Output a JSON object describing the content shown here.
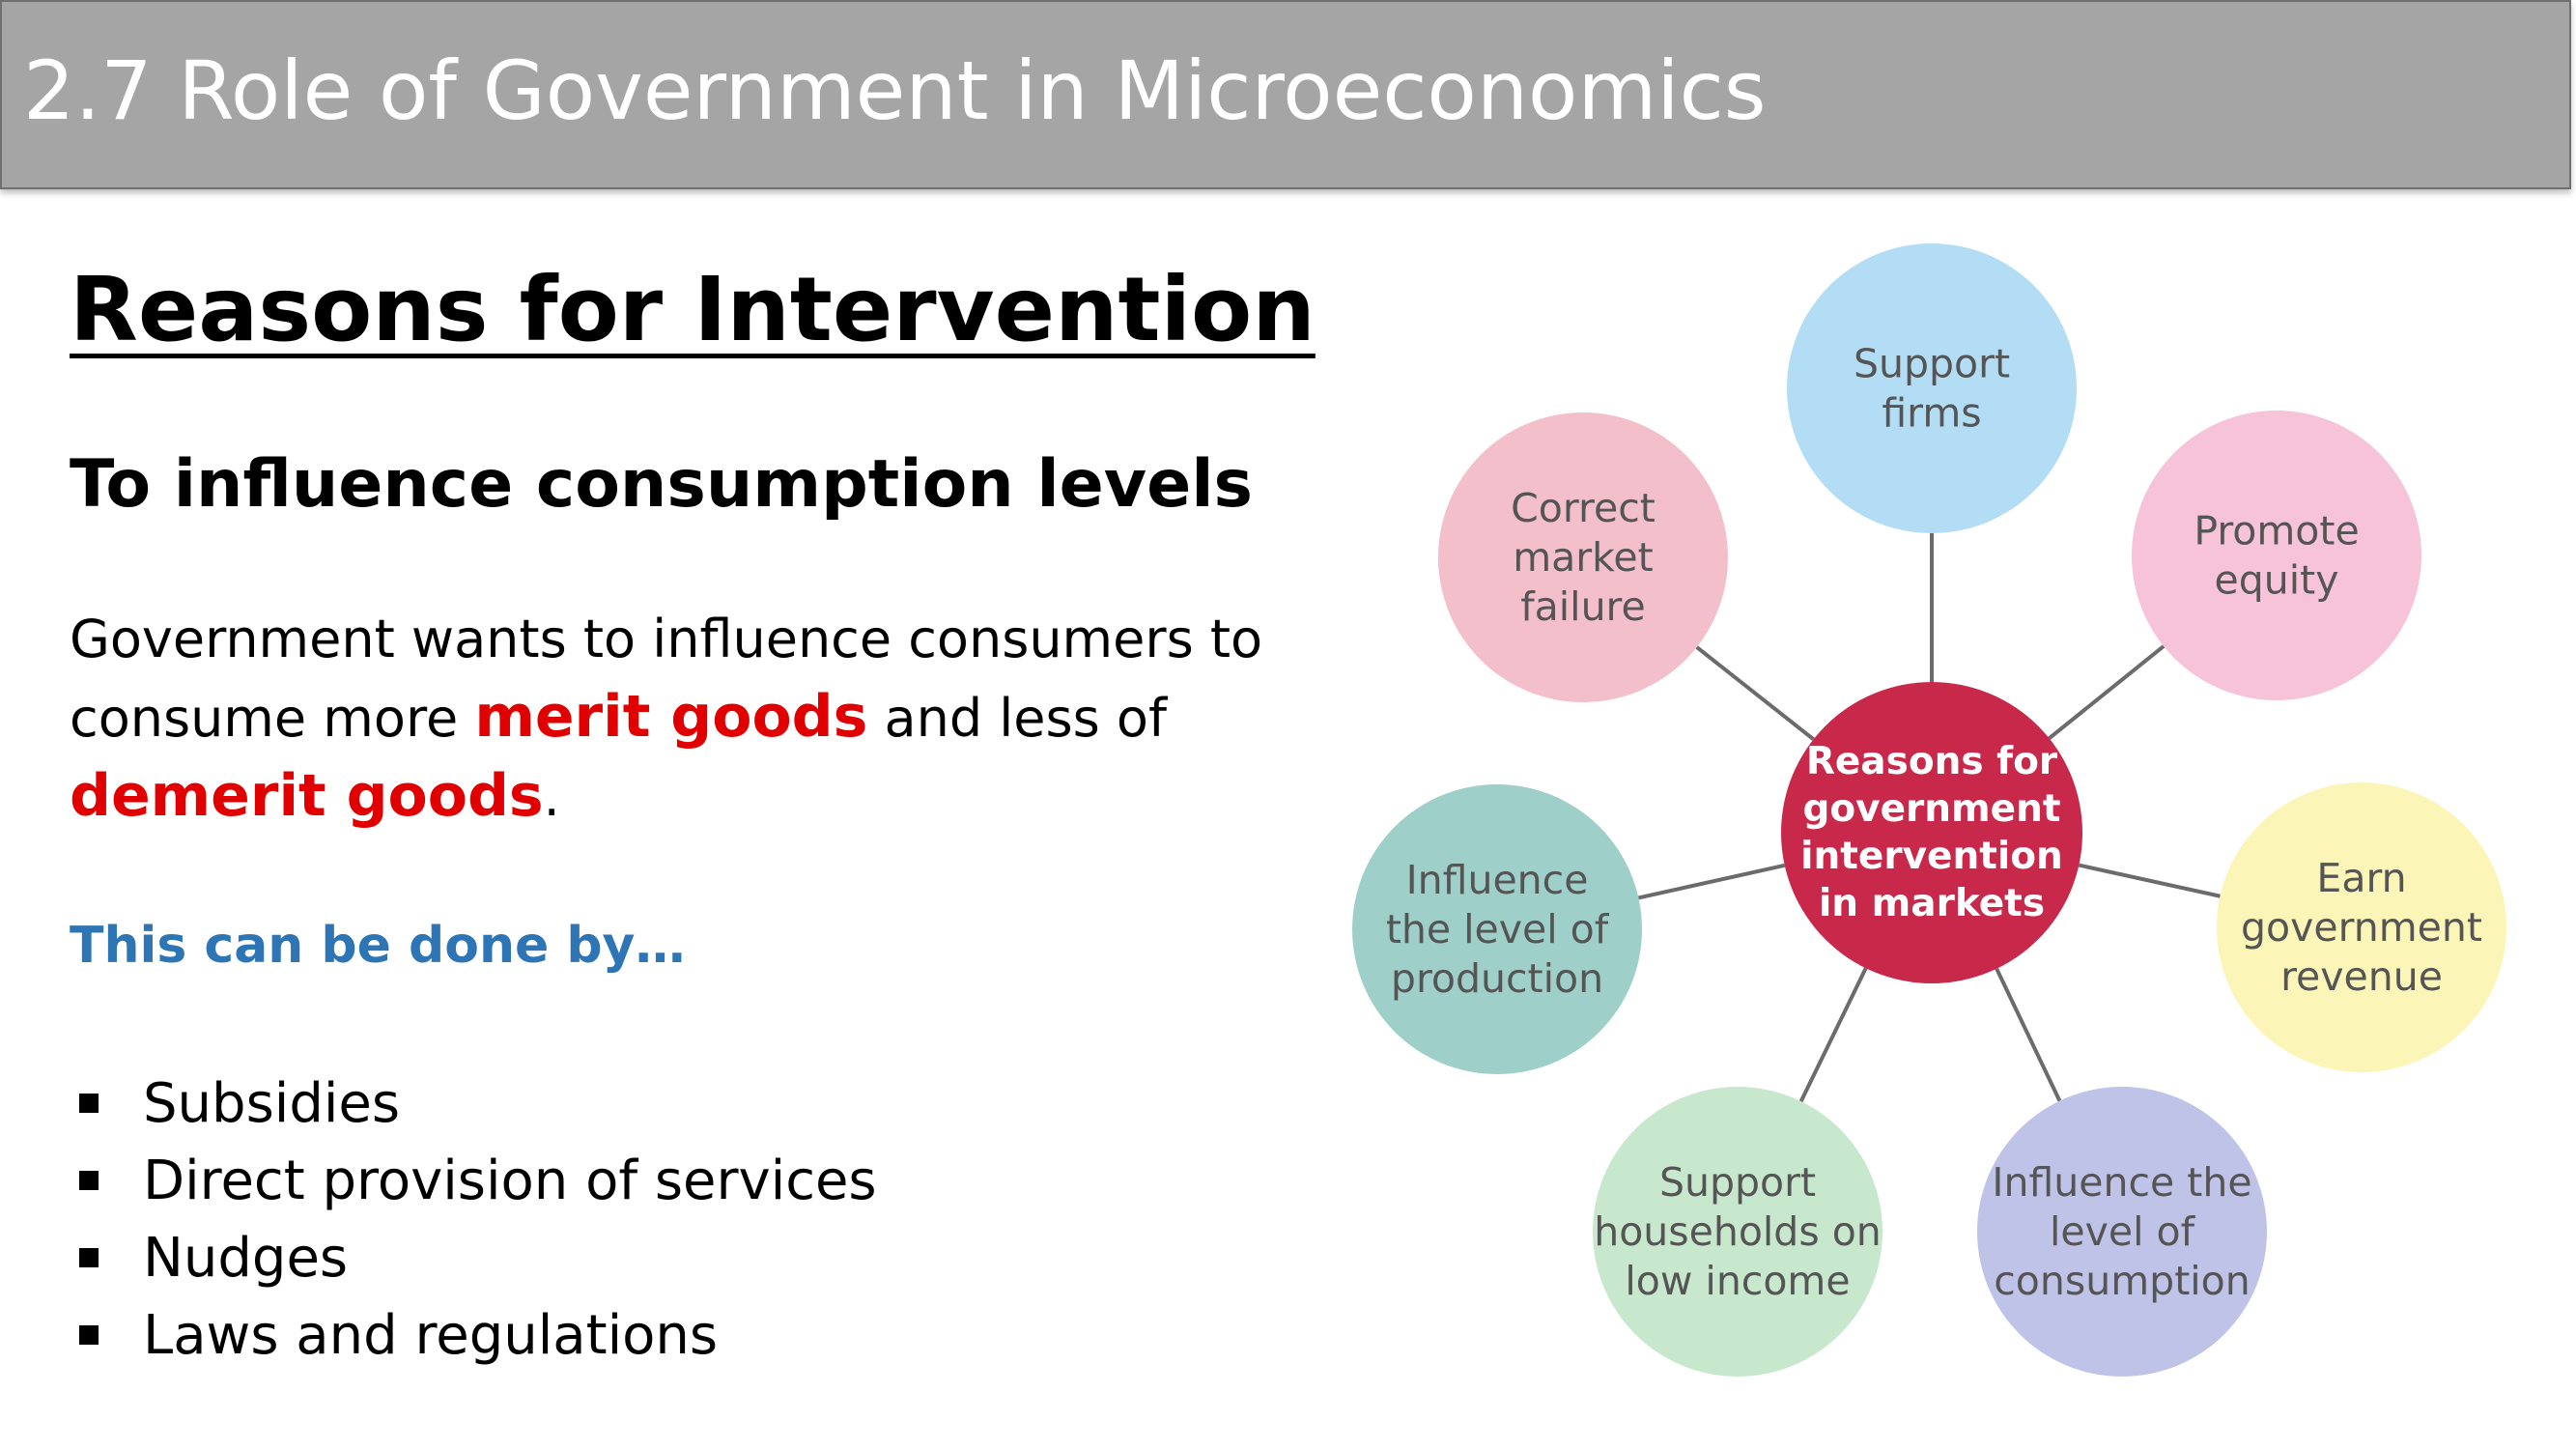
{
  "title": "2.7 Role of Government in Microeconomics",
  "heading": "Reasons for Intervention",
  "subheading": "To influence consumption levels",
  "paragraph": {
    "part1": "Government wants to influence consumers to consume more ",
    "merit": "merit goods",
    "part2": " and less of ",
    "demerit": "demerit goods",
    "part3": "."
  },
  "done_by": "This can be done by…",
  "bullets": [
    "Subsidies",
    "Direct provision of services",
    "Nudges",
    "Laws and regulations"
  ],
  "diagram": {
    "center": {
      "lines": [
        "Reasons for",
        "government",
        "intervention",
        "in markets"
      ],
      "color": "#c8284a"
    },
    "nodes": [
      {
        "key": "support-firms",
        "lines": [
          "Support",
          "firms"
        ],
        "color": "#b3ddf5"
      },
      {
        "key": "promote-equity",
        "lines": [
          "Promote",
          "equity"
        ],
        "color": "#f6c3d9"
      },
      {
        "key": "earn-government-revenue",
        "lines": [
          "Earn",
          "government",
          "revenue"
        ],
        "color": "#fbf6b8"
      },
      {
        "key": "influence-consumption",
        "lines": [
          "Influence the",
          "level of",
          "consumption"
        ],
        "color": "#c0c3e8"
      },
      {
        "key": "support-households",
        "lines": [
          "Support",
          "households on",
          "low income"
        ],
        "color": "#c7e8cd"
      },
      {
        "key": "influence-production",
        "lines": [
          "Influence",
          "the level of",
          "production"
        ],
        "color": "#9ecfc9"
      },
      {
        "key": "correct-market-failure",
        "lines": [
          "Correct",
          "market",
          "failure"
        ],
        "color": "#f3bfcb"
      }
    ]
  }
}
